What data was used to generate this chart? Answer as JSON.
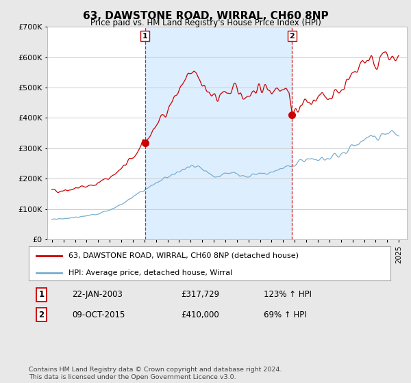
{
  "title": "63, DAWSTONE ROAD, WIRRAL, CH60 8NP",
  "subtitle": "Price paid vs. HM Land Registry's House Price Index (HPI)",
  "legend_label_red": "63, DAWSTONE ROAD, WIRRAL, CH60 8NP (detached house)",
  "legend_label_blue": "HPI: Average price, detached house, Wirral",
  "transaction1_date": "22-JAN-2003",
  "transaction1_price": "£317,729",
  "transaction1_hpi": "123% ↑ HPI",
  "transaction2_date": "09-OCT-2015",
  "transaction2_price": "£410,000",
  "transaction2_hpi": "69% ↑ HPI",
  "footer": "Contains HM Land Registry data © Crown copyright and database right 2024.\nThis data is licensed under the Open Government Licence v3.0.",
  "ylim": [
    0,
    700000
  ],
  "yticks": [
    0,
    100000,
    200000,
    300000,
    400000,
    500000,
    600000,
    700000
  ],
  "background_color": "#e8e8e8",
  "plot_background": "#ffffff",
  "red_color": "#cc0000",
  "blue_color": "#7aadcf",
  "shade_color": "#ddeeff",
  "vline_color": "#cc0000",
  "grid_color": "#cccccc",
  "transaction1_x": 2003.056,
  "transaction1_y": 317729,
  "transaction2_x": 2015.775,
  "transaction2_y": 410000,
  "xmin": 1995,
  "xmax": 2025
}
